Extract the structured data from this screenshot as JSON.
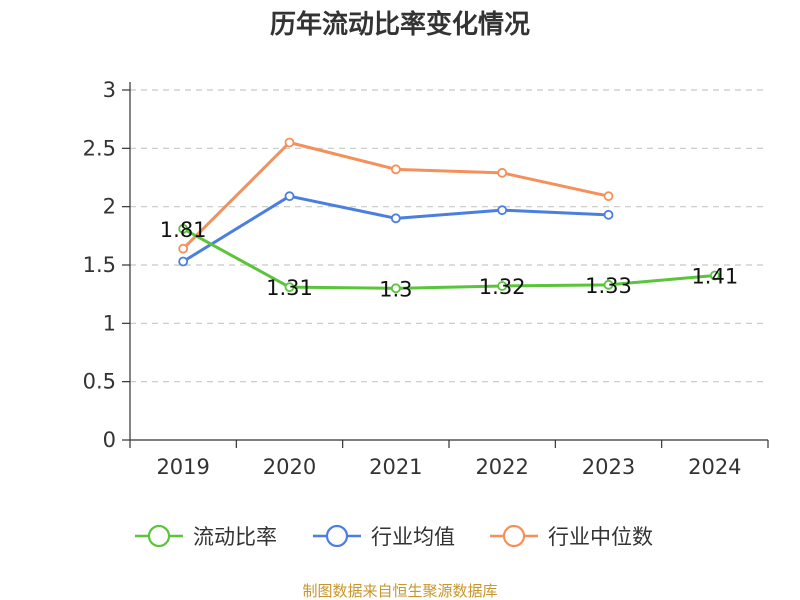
{
  "chart_data": {
    "type": "line",
    "title": "历年流动比率变化情况",
    "categories": [
      "2019",
      "2020",
      "2021",
      "2022",
      "2023",
      "2024"
    ],
    "y_ticks": [
      "0",
      "0.5",
      "1",
      "1.5",
      "2",
      "2.5",
      "3"
    ],
    "ylim": [
      0,
      3
    ],
    "grid": "horizontal dashed",
    "legend_position": "bottom",
    "series": [
      {
        "name": "流动比率",
        "color": "#5ac43a",
        "values": [
          1.81,
          1.31,
          1.3,
          1.32,
          1.33,
          1.41
        ],
        "labels": [
          "1.81",
          "1.31",
          "1.3",
          "1.32",
          "1.33",
          "1.41"
        ]
      },
      {
        "name": "行业均值",
        "color": "#4a7fe0",
        "values": [
          1.53,
          2.09,
          1.9,
          1.97,
          1.93,
          null
        ]
      },
      {
        "name": "行业中位数",
        "color": "#f5905a",
        "values": [
          1.64,
          2.55,
          2.32,
          2.29,
          2.09,
          null
        ]
      }
    ]
  },
  "source": {
    "text": "制图数据来自恒生聚源数据库",
    "color": "#c8962c"
  }
}
